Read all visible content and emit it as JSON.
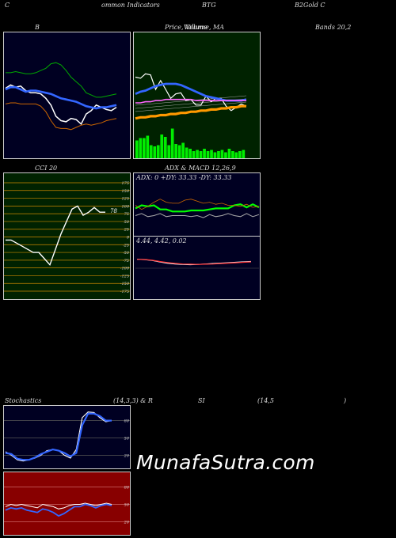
{
  "header": {
    "c1": "C",
    "c2": "ommon  Indicators",
    "c3": "BTG",
    "c4": "B2Gold C"
  },
  "row1": {
    "bands_title": "B",
    "price_title": "Price,  Volume,  MA",
    "price_overlay": "Volume",
    "bands_right": "Bands 20,2"
  },
  "row2": {
    "cci_title": "CCI 20",
    "macd_title": "ADX  & MACD 12,26,9",
    "adx_readout": "ADX: 0  +DY: 33.33 -DY: 33.33",
    "macd_readout": "4.44,  4.42,  0.02"
  },
  "row3": {
    "stoch_title": "Stochastics",
    "stoch_params": "(14,3,3) & R",
    "rsi_title": "SI",
    "rsi_params": "(14,5",
    "rsi_close": ")"
  },
  "watermark": "MunafaSutra.com",
  "colors": {
    "bands_bg": "#000022",
    "price_bg": "#002200",
    "cci_bg": "#002200",
    "adx_bg": "#000022",
    "stoch_bg": "#000022",
    "rsi_bg": "#880000"
  },
  "chart_data": [
    {
      "type": "line",
      "name": "bollinger-bands",
      "ylim": [
        0,
        100
      ],
      "series": [
        {
          "name": "",
          "color": "#ffffff",
          "values": [
            57,
            60,
            58,
            59,
            55,
            53,
            53,
            52,
            48,
            42,
            32,
            28,
            27,
            30,
            29,
            25,
            34,
            37,
            42,
            40,
            38,
            37,
            40
          ]
        },
        {
          "name": "",
          "color": "#3366ff",
          "values": [
            56,
            58,
            58,
            56,
            54,
            55,
            55,
            54,
            53,
            52,
            50,
            48,
            47,
            46,
            45,
            43,
            41,
            40,
            39,
            40,
            40,
            41,
            42
          ]
        },
        {
          "name": "",
          "color": "#00aa00",
          "values": [
            71,
            71,
            72,
            71,
            70,
            70,
            71,
            73,
            75,
            79,
            80,
            78,
            73,
            67,
            63,
            59,
            53,
            51,
            49,
            49,
            50,
            51,
            52
          ]
        },
        {
          "name": "",
          "color": "#cc6600",
          "values": [
            43,
            44,
            44,
            43,
            43,
            43,
            43,
            41,
            36,
            28,
            22,
            21,
            21,
            20,
            22,
            24,
            25,
            24,
            25,
            26,
            28,
            29,
            30
          ]
        }
      ]
    },
    {
      "type": "line",
      "name": "price-volume-ma",
      "ylim": [
        0,
        100
      ],
      "series": [
        {
          "name": "",
          "color": "#ffffff",
          "values": [
            67,
            66,
            70,
            69,
            56,
            64,
            56,
            48,
            52,
            53,
            46,
            47,
            42,
            42,
            50,
            45,
            48,
            48,
            41,
            37,
            40,
            43,
            41
          ]
        },
        {
          "name": "",
          "color": "#3366ff",
          "values": [
            52,
            54,
            55,
            57,
            59,
            60,
            61,
            61,
            61,
            60,
            58,
            56,
            54,
            52,
            50,
            49,
            48,
            47,
            46,
            46,
            46,
            46,
            47
          ]
        },
        {
          "name": "",
          "color": "#ff66ff",
          "values": [
            44,
            44,
            45,
            45,
            46,
            46,
            47,
            47,
            47,
            47,
            47,
            47,
            46,
            46,
            46,
            46,
            46,
            46,
            46,
            46,
            46,
            46,
            46
          ]
        },
        {
          "name": "",
          "color": "#ff9900",
          "values": [
            30,
            31,
            31,
            32,
            32,
            33,
            33,
            34,
            34,
            35,
            35,
            36,
            36,
            37,
            37,
            38,
            38,
            39,
            39,
            40,
            40,
            41,
            41
          ]
        }
      ],
      "volume": [
        30,
        34,
        34,
        38,
        22,
        20,
        22,
        40,
        36,
        22,
        50,
        24,
        22,
        26,
        18,
        16,
        12,
        14,
        12,
        16,
        12,
        14,
        10,
        12,
        14,
        10,
        16,
        12,
        10,
        12,
        14
      ]
    },
    {
      "type": "line",
      "name": "cci",
      "ylim": [
        -175,
        175
      ],
      "ticks": [
        175,
        150,
        125,
        100,
        75,
        50,
        25,
        0,
        -25,
        -50,
        -75,
        -100,
        -125,
        -150,
        -175
      ],
      "series": [
        {
          "name": "",
          "color": "#ffffff",
          "values": [
            -10,
            -10,
            -20,
            -30,
            -40,
            -50,
            -50,
            -70,
            -90,
            -40,
            10,
            50,
            90,
            100,
            70,
            80,
            95,
            80,
            80
          ]
        }
      ],
      "last_label": "78"
    },
    {
      "type": "line",
      "name": "adx",
      "ylim": [
        0,
        100
      ],
      "series": [
        {
          "name": "",
          "color": "#00ff00",
          "values": [
            44,
            50,
            48,
            50,
            42,
            42,
            38,
            38,
            38,
            40,
            40,
            40,
            42,
            44,
            44,
            44,
            50,
            52,
            46,
            52,
            46
          ]
        },
        {
          "name": "",
          "color": "#cc6600",
          "values": [
            50,
            42,
            48,
            56,
            62,
            56,
            54,
            54,
            60,
            62,
            58,
            54,
            56,
            52,
            54,
            50,
            50,
            48,
            52,
            46,
            48
          ]
        },
        {
          "name": "",
          "color": "#aaaaaa",
          "values": [
            30,
            34,
            28,
            30,
            34,
            28,
            30,
            30,
            30,
            28,
            30,
            26,
            32,
            28,
            30,
            34,
            30,
            28,
            34,
            28,
            32
          ]
        }
      ]
    },
    {
      "type": "line",
      "name": "macd",
      "ylim": [
        -10,
        10
      ],
      "series": [
        {
          "name": "",
          "color": "#ffffff",
          "values": [
            4.44,
            4.3,
            3.9,
            3.2,
            2.6,
            2.2,
            2.0,
            1.9,
            2.0,
            2.2,
            2.4,
            2.6,
            2.8,
            3.0,
            3.2,
            3.4
          ]
        },
        {
          "name": "",
          "color": "#ff3333",
          "values": [
            4.42,
            4.35,
            4.0,
            3.4,
            2.9,
            2.5,
            2.2,
            2.1,
            2.0,
            2.1,
            2.2,
            2.4,
            2.6,
            2.8,
            3.0,
            3.2
          ]
        }
      ]
    },
    {
      "type": "line",
      "name": "stochastics",
      "ylim": [
        0,
        100
      ],
      "series": [
        {
          "name": "",
          "color": "#ffffff",
          "values": [
            26,
            20,
            12,
            10,
            12,
            15,
            20,
            28,
            30,
            28,
            20,
            15,
            30,
            85,
            95,
            94,
            85,
            78,
            80
          ]
        },
        {
          "name": "",
          "color": "#3366ff",
          "values": [
            24,
            22,
            14,
            12,
            12,
            16,
            22,
            26,
            30,
            28,
            24,
            18,
            24,
            72,
            92,
            92,
            88,
            80,
            80
          ]
        }
      ],
      "ticks": [
        80,
        50,
        20
      ]
    },
    {
      "type": "line",
      "name": "rsi",
      "ylim": [
        0,
        100
      ],
      "series": [
        {
          "name": "",
          "color": "#ffffff",
          "values": [
            46,
            50,
            48,
            50,
            48,
            46,
            44,
            50,
            48,
            46,
            42,
            44,
            48,
            50,
            50,
            52,
            50,
            48,
            50,
            52,
            50
          ]
        },
        {
          "name": "",
          "color": "#3366ff",
          "values": [
            40,
            44,
            42,
            44,
            40,
            38,
            36,
            42,
            40,
            36,
            30,
            34,
            40,
            46,
            46,
            50,
            48,
            44,
            48,
            50,
            48
          ]
        }
      ],
      "ticks": [
        80,
        50,
        20
      ]
    }
  ]
}
